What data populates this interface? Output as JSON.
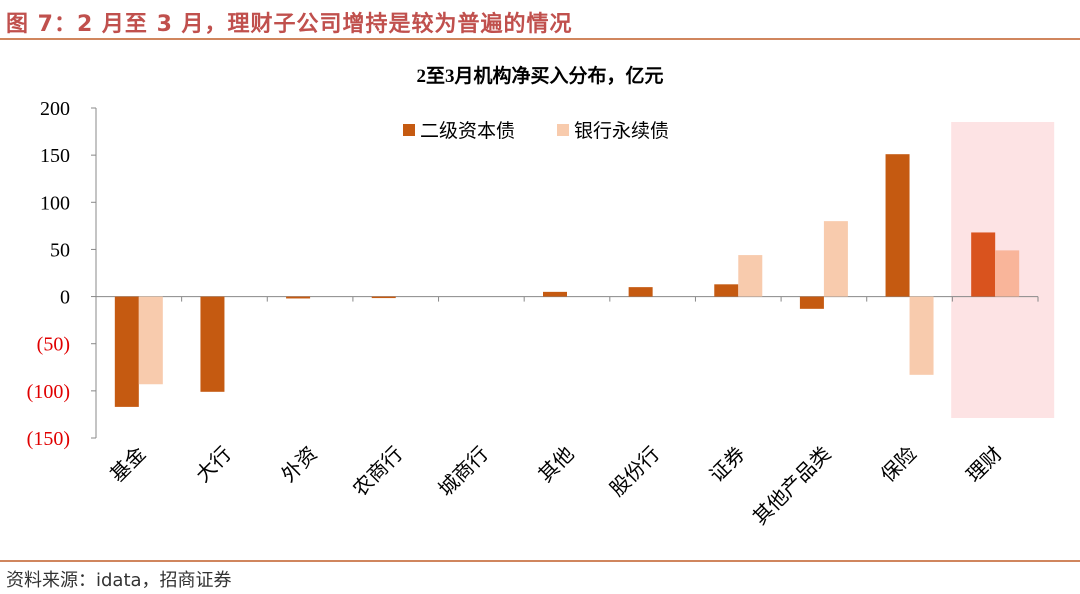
{
  "figure": {
    "title": "图 7：2 月至 3 月，理财子公司增持是较为普遍的情况",
    "source": "资料来源：idata，招商证券"
  },
  "colors": {
    "series1": "#c55a11",
    "series2": "#f8cbad",
    "highlight_band": "#fde3e4",
    "highlight_series1": "#d9531e",
    "highlight_series2": "#f9b59a",
    "negative_tick": "#e00000",
    "rule": "#d0865e",
    "title": "#c0504d"
  },
  "chart_data": {
    "type": "bar",
    "title": "2至3月机构净买入分布，亿元",
    "categories": [
      "基金",
      "大行",
      "外资",
      "农商行",
      "城商行",
      "其他",
      "股份行",
      "证券",
      "其他产品类",
      "保险",
      "理财"
    ],
    "series": [
      {
        "name": "二级资本债",
        "values": [
          -117,
          -101,
          -2,
          -1,
          0,
          5,
          10,
          13,
          -13,
          151,
          68
        ]
      },
      {
        "name": "银行永续债",
        "values": [
          -93,
          0,
          0,
          0,
          0,
          0,
          0,
          44,
          80,
          -83,
          49
        ]
      }
    ],
    "ylim": [
      -150,
      200
    ],
    "yticks": [
      200,
      150,
      100,
      50,
      0,
      -50,
      -100,
      -150
    ],
    "ytick_labels": [
      "200",
      "150",
      "100",
      "50",
      "0",
      "(50)",
      "(100)",
      "(150)"
    ],
    "highlighted_category": "理财",
    "legend_position": "top-right",
    "grid": false
  }
}
